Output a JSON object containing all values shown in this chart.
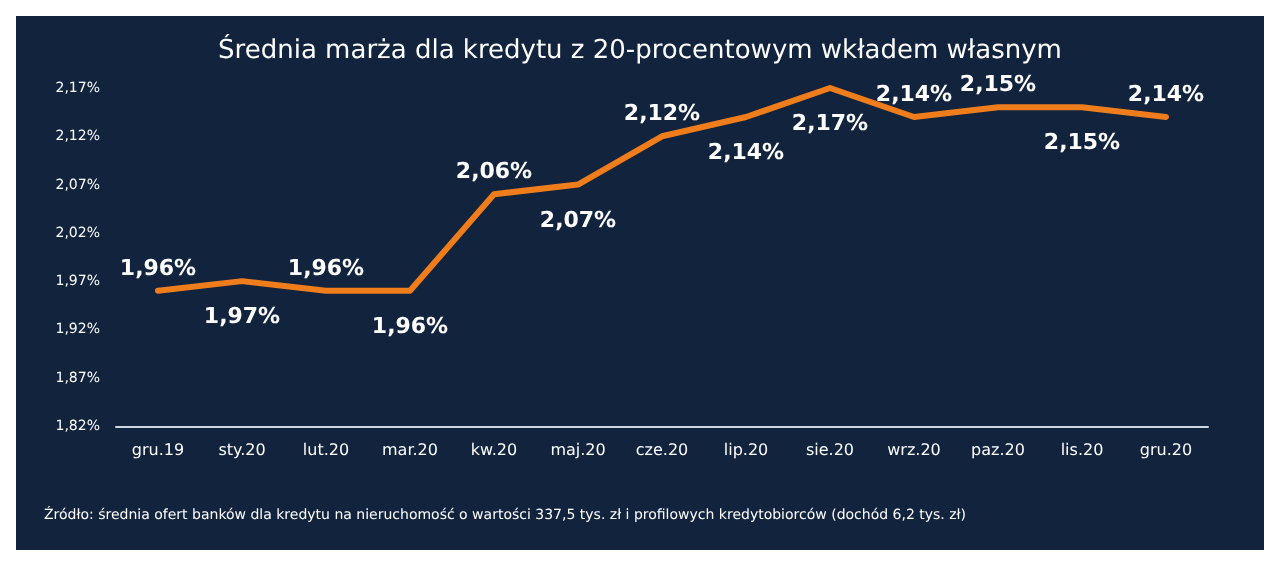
{
  "chart_data": {
    "type": "line",
    "title": "Średnia marża dla kredytu z 20-procentowym wkładem własnym",
    "categories": [
      "gru.19",
      "sty.20",
      "lut.20",
      "mar.20",
      "kw.20",
      "maj.20",
      "cze.20",
      "lip.20",
      "sie.20",
      "wrz.20",
      "paz.20",
      "lis.20",
      "gru.20"
    ],
    "series": [
      {
        "color": "#f07d1c",
        "values": [
          1.96,
          1.97,
          1.96,
          1.96,
          2.06,
          2.07,
          2.12,
          2.14,
          2.17,
          2.14,
          2.15,
          2.15,
          2.14
        ],
        "value_labels": [
          "1,96%",
          "1,97%",
          "1,96%",
          "1,96%",
          "2,06%",
          "2,07%",
          "2,12%",
          "2,14%",
          "2,17%",
          "2,14%",
          "2,15%",
          "2,15%",
          "2,14%"
        ]
      }
    ],
    "ylim": [
      1.82,
      2.17
    ],
    "yticks": [
      {
        "value": 1.82,
        "label": "1,82%"
      },
      {
        "value": 1.87,
        "label": "1,87%"
      },
      {
        "value": 1.92,
        "label": "1,92%"
      },
      {
        "value": 1.97,
        "label": "1,97%"
      },
      {
        "value": 2.02,
        "label": "2,02%"
      },
      {
        "value": 2.07,
        "label": "2,07%"
      },
      {
        "value": 2.12,
        "label": "2,12%"
      },
      {
        "value": 2.17,
        "label": "2,17%"
      }
    ],
    "grid": false,
    "marker": "none",
    "line_style": "solid",
    "annotations": [
      "Źródło: średnia ofert banków dla kredytu na nieruchomość o wartości 337,5 tys. zł i profilowych kredytobiorców (dochód 6,2 tys. zł)"
    ]
  }
}
